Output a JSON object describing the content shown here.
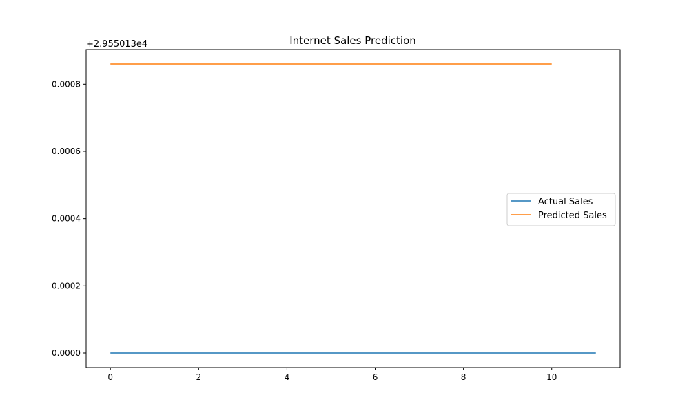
{
  "chart_data": {
    "type": "line",
    "title": "Internet Sales Prediction",
    "xlabel": "",
    "ylabel": "",
    "offset_text": "+2.955013e4",
    "xlim": [
      -0.55,
      11.55
    ],
    "ylim": [
      -4.3e-05,
      0.000903
    ],
    "x_ticks": [
      0,
      2,
      4,
      6,
      8,
      10
    ],
    "x_tick_labels": [
      "0",
      "2",
      "4",
      "6",
      "8",
      "10"
    ],
    "y_ticks": [
      0.0,
      0.0002,
      0.0004,
      0.0006,
      0.0008
    ],
    "y_tick_labels": [
      "0.0000",
      "0.0002",
      "0.0004",
      "0.0006",
      "0.0008"
    ],
    "grid": false,
    "legend_position": "center-right",
    "series": [
      {
        "name": "Actual Sales",
        "color": "#1f77b4",
        "x": [
          0,
          1,
          2,
          3,
          4,
          5,
          6,
          7,
          8,
          9,
          10,
          11
        ],
        "values": [
          0,
          0,
          0,
          0,
          0,
          0,
          0,
          0,
          0,
          0,
          0,
          0
        ]
      },
      {
        "name": "Predicted Sales",
        "color": "#ff7f0e",
        "x": [
          0,
          1,
          2,
          3,
          4,
          5,
          6,
          7,
          8,
          9,
          10
        ],
        "values": [
          0.00086,
          0.00086,
          0.00086,
          0.00086,
          0.00086,
          0.00086,
          0.00086,
          0.00086,
          0.00086,
          0.00086,
          0.00086
        ]
      }
    ]
  }
}
